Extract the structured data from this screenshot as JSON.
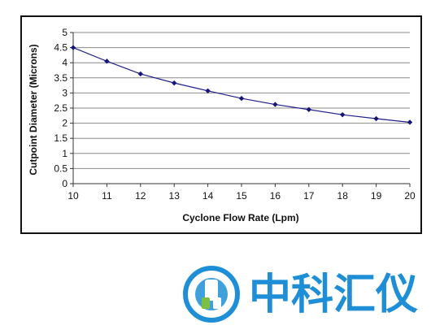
{
  "chart_data": {
    "type": "line",
    "title": "",
    "xlabel": "Cyclone Flow Rate (Lpm)",
    "ylabel": "Cutpoint Diameter (Microns)",
    "xlim": [
      10,
      20
    ],
    "ylim": [
      0,
      5
    ],
    "x_ticks": [
      "10",
      "11",
      "12",
      "13",
      "14",
      "15",
      "16",
      "17",
      "18",
      "19",
      "20"
    ],
    "y_ticks": [
      "0",
      "0.5",
      "1",
      "1.5",
      "2",
      "2.5",
      "3",
      "3.5",
      "4",
      "4.5",
      "5"
    ],
    "grid": "horizontal",
    "legend": "none",
    "line_color": "#1f1f8a",
    "series": [
      {
        "x": [
          10,
          11,
          12,
          13,
          14,
          15,
          16,
          17,
          18,
          19,
          20
        ],
        "values": [
          4.5,
          4.05,
          3.63,
          3.33,
          3.07,
          2.82,
          2.62,
          2.45,
          2.28,
          2.15,
          2.03
        ]
      }
    ]
  },
  "watermark": {
    "text": "中科汇仪",
    "color": "#1e8fd6"
  }
}
